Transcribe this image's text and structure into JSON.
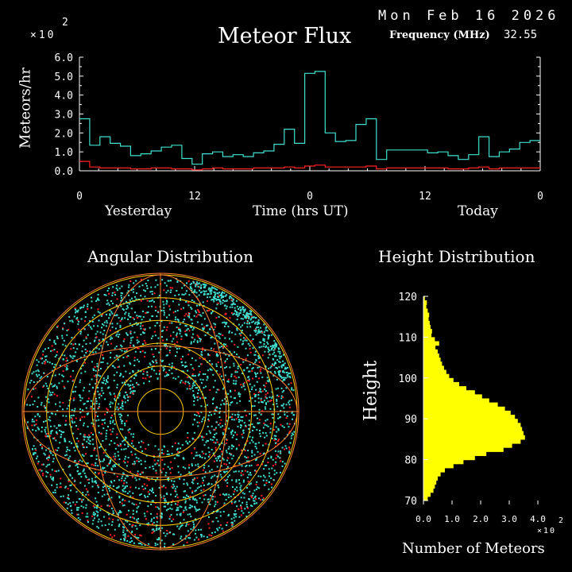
{
  "header": {
    "date": "Mon Feb 16 2026",
    "title": "Meteor Flux",
    "frequency_label": "Frequency (MHz)",
    "frequency_value": "32.55"
  },
  "colors": {
    "background": "#000000",
    "axis": "#ffffff",
    "flux_line": "#40e0d0",
    "flux_low": "#ff2020",
    "angular_ring": "#ffd000",
    "angular_outer": "#ff8030",
    "height_bar": "#ffff00"
  },
  "chart_data": [
    {
      "id": "meteor-flux",
      "type": "line",
      "title": "Meteor Flux",
      "ylabel": "Meteors/hr",
      "y_multiplier": "×10",
      "y_multiplier_exp": "2",
      "xlabel": "Time (hrs UT)",
      "day_labels": [
        "Yesterday",
        "Today"
      ],
      "xlim": [
        0,
        48
      ],
      "ylim": [
        0,
        6
      ],
      "x_ticks": [
        0,
        12,
        24,
        36,
        48
      ],
      "x_tick_labels": [
        "0",
        "12",
        "0",
        "12",
        "0"
      ],
      "y_tick_labels": [
        "0.0",
        "1.0",
        "2.0",
        "3.0",
        "4.0",
        "5.0",
        "6.0"
      ],
      "series": [
        {
          "color": "flux_line",
          "values": [
            2.75,
            1.35,
            1.8,
            1.45,
            1.3,
            0.8,
            0.9,
            1.05,
            1.25,
            1.35,
            0.65,
            0.35,
            0.9,
            1.0,
            0.75,
            0.85,
            0.75,
            0.95,
            1.05,
            1.4,
            2.2,
            1.45,
            5.15,
            5.25,
            2.0,
            1.55,
            1.6,
            2.45,
            2.75,
            0.6,
            1.1,
            1.1,
            1.1,
            1.1,
            0.95,
            1.0,
            0.8,
            0.6,
            0.85,
            1.8,
            0.75,
            1.0,
            1.15,
            1.5,
            1.6
          ]
        },
        {
          "color": "flux_low",
          "values": [
            0.5,
            0.2,
            0.15,
            0.15,
            0.15,
            0.1,
            0.1,
            0.15,
            0.15,
            0.1,
            0.1,
            0.05,
            0.1,
            0.15,
            0.1,
            0.1,
            0.1,
            0.15,
            0.15,
            0.15,
            0.2,
            0.15,
            0.25,
            0.3,
            0.2,
            0.2,
            0.2,
            0.2,
            0.25,
            0.1,
            0.15,
            0.15,
            0.15,
            0.15,
            0.15,
            0.15,
            0.1,
            0.1,
            0.15,
            0.2,
            0.1,
            0.15,
            0.15,
            0.15,
            0.15
          ]
        }
      ]
    },
    {
      "id": "angular-distribution",
      "type": "scatter",
      "title": "Angular Distribution",
      "ring_count": 6,
      "point_color_primary": "flux_line",
      "point_color_secondary": "flux_low"
    },
    {
      "id": "height-distribution",
      "type": "bar",
      "orientation": "horizontal",
      "title": "Height Distribution",
      "ylabel": "Height",
      "xlabel": "Number of Meteors",
      "x_multiplier": "×10",
      "x_multiplier_exp": "2",
      "xlim": [
        0,
        4
      ],
      "ylim": [
        70,
        120
      ],
      "x_ticks": [
        0,
        1,
        2,
        3,
        4
      ],
      "x_tick_labels": [
        "0.0",
        "1.0",
        "2.0",
        "3.0",
        "4.0"
      ],
      "y_ticks": [
        70,
        80,
        90,
        100,
        110,
        120
      ],
      "y_tick_labels": [
        "70",
        "80",
        "90",
        "100",
        "110",
        "120"
      ],
      "heights": [
        120,
        119,
        118,
        117,
        116,
        115,
        114,
        113,
        112,
        111,
        110,
        109,
        108,
        107,
        106,
        105,
        104,
        103,
        102,
        101,
        100,
        99,
        98,
        97,
        96,
        95,
        94,
        93,
        92,
        91,
        90,
        89,
        88,
        87,
        86,
        85,
        84,
        83,
        82,
        81,
        80,
        79,
        78,
        77,
        76,
        75,
        74,
        73,
        72,
        71
      ],
      "values": [
        0.05,
        0.12,
        0.1,
        0.15,
        0.2,
        0.18,
        0.22,
        0.25,
        0.3,
        0.28,
        0.4,
        0.55,
        0.42,
        0.5,
        0.55,
        0.6,
        0.65,
        0.72,
        0.8,
        0.9,
        1.05,
        1.25,
        1.5,
        1.8,
        2.05,
        2.3,
        2.6,
        2.85,
        3.05,
        3.2,
        3.3,
        3.4,
        3.45,
        3.5,
        3.55,
        3.4,
        3.1,
        2.8,
        2.2,
        1.8,
        1.4,
        1.05,
        0.75,
        0.6,
        0.5,
        0.45,
        0.4,
        0.35,
        0.25,
        0.15
      ]
    }
  ]
}
